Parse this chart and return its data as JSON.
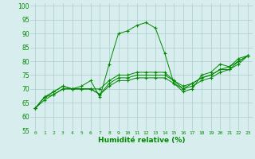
{
  "xlabel": "Humidité relative (%)",
  "background_color": "#d8eeee",
  "grid_color": "#aacccc",
  "line_color": "#008800",
  "marker": "+",
  "xlim": [
    -0.5,
    23.5
  ],
  "ylim": [
    55,
    101
  ],
  "xticks": [
    0,
    1,
    2,
    3,
    4,
    5,
    6,
    7,
    8,
    9,
    10,
    11,
    12,
    13,
    14,
    15,
    16,
    17,
    18,
    19,
    20,
    21,
    22,
    23
  ],
  "yticks": [
    55,
    60,
    65,
    70,
    75,
    80,
    85,
    90,
    95,
    100
  ],
  "series": [
    [
      63,
      67,
      69,
      71,
      70,
      71,
      73,
      67,
      79,
      90,
      91,
      93,
      94,
      92,
      83,
      72,
      69,
      70,
      75,
      76,
      79,
      78,
      81,
      82
    ],
    [
      63,
      67,
      69,
      71,
      70,
      70,
      70,
      70,
      73,
      75,
      75,
      76,
      76,
      76,
      76,
      73,
      71,
      72,
      74,
      75,
      77,
      78,
      80,
      82
    ],
    [
      63,
      67,
      68,
      70,
      70,
      70,
      70,
      68,
      72,
      74,
      74,
      75,
      75,
      75,
      75,
      73,
      70,
      72,
      74,
      75,
      77,
      77,
      80,
      82
    ],
    [
      63,
      66,
      68,
      70,
      70,
      70,
      70,
      68,
      71,
      73,
      73,
      74,
      74,
      74,
      74,
      72,
      70,
      71,
      73,
      74,
      76,
      77,
      79,
      82
    ]
  ]
}
